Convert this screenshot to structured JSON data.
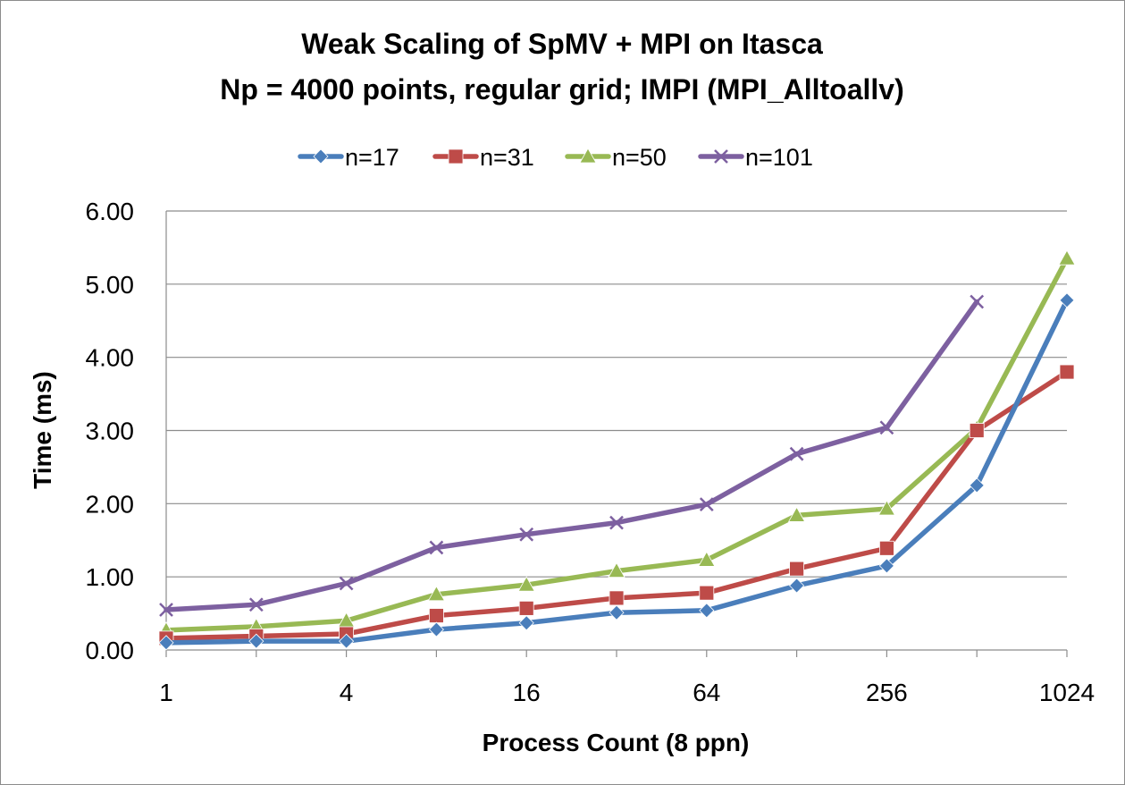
{
  "chart_data": {
    "type": "line",
    "title_lines": [
      "Weak Scaling of SpMV + MPI on Itasca",
      "Np = 4000 points, regular grid; IMPI (MPI_Alltoallv)"
    ],
    "xlabel": "Process Count (8 ppn)",
    "ylabel": "Time (ms)",
    "x_scale": "log2",
    "x_ticks": [
      "1",
      "4",
      "16",
      "64",
      "256",
      "1024"
    ],
    "x": [
      1,
      2,
      4,
      8,
      16,
      32,
      64,
      128,
      256,
      512,
      1024
    ],
    "y_ticks": [
      "0.00",
      "1.00",
      "2.00",
      "3.00",
      "4.00",
      "5.00",
      "6.00"
    ],
    "ylim": [
      0,
      6
    ],
    "grid": "horizontal",
    "legend_position": "top",
    "series": [
      {
        "name": "n=17",
        "color": "#4a7ebb",
        "marker": "diamond",
        "values": [
          0.1,
          0.12,
          0.12,
          0.28,
          0.37,
          0.51,
          0.54,
          0.88,
          1.15,
          2.25,
          4.78
        ]
      },
      {
        "name": "n=31",
        "color": "#be4b48",
        "marker": "square",
        "values": [
          0.16,
          0.19,
          0.22,
          0.47,
          0.57,
          0.71,
          0.78,
          1.11,
          1.39,
          3.0,
          3.8
        ]
      },
      {
        "name": "n=50",
        "color": "#98b954",
        "marker": "triangle",
        "values": [
          0.27,
          0.32,
          0.4,
          0.76,
          0.89,
          1.08,
          1.23,
          1.84,
          1.93,
          3.03,
          5.35
        ]
      },
      {
        "name": "n=101",
        "color": "#7d60a0",
        "marker": "x",
        "values": [
          0.55,
          0.62,
          0.91,
          1.4,
          1.58,
          1.74,
          1.99,
          2.68,
          3.04,
          4.76,
          null
        ]
      }
    ]
  }
}
